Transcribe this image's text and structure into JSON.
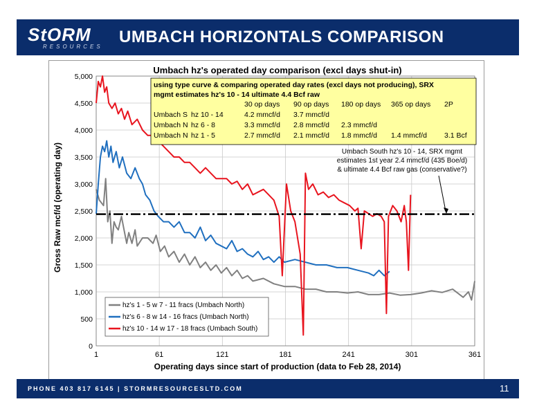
{
  "header": {
    "logo_main": "StORM",
    "logo_sub": "RESOURCES",
    "title": "UMBACH HORIZONTALS COMPARISON"
  },
  "footer": {
    "text": "PHONE 403 817 6145  |  STORMRESOURCESLTD.COM",
    "page_number": "11"
  },
  "colors": {
    "header_bg": "#0b2d6b",
    "north_1_5": "#808080",
    "north_6_8": "#1f6fbf",
    "south_10_14": "#e8141e",
    "box_fill": "#ffffa0"
  },
  "chart_data": {
    "type": "line",
    "title": "Umbach hz's operated  day comparison (excl days shut-in)",
    "xlabel": "Operating days since start of production (data to Feb 28, 2014)",
    "ylabel": "Gross Raw mcf/d (operating day)",
    "xlim": [
      1,
      361
    ],
    "ylim": [
      0,
      5000
    ],
    "x_ticks": [
      1,
      61,
      121,
      181,
      241,
      301,
      361
    ],
    "y_ticks": [
      0,
      500,
      1000,
      1500,
      2000,
      2500,
      3000,
      3500,
      4000,
      4500,
      5000
    ],
    "y_tick_labels": [
      "0",
      "500",
      "1,000",
      "1,500",
      "2,000",
      "2,500",
      "3,000",
      "3,500",
      "4,000",
      "4,500",
      "5,000"
    ],
    "grid": true,
    "legend_position": "bottom-left",
    "reference_line": {
      "y": 2440,
      "style": "dash-dot"
    },
    "series": [
      {
        "name": "hz's 1 - 5 w 7 - 11 fracs (Umbach North)",
        "color": "#808080",
        "points": [
          [
            1,
            2900
          ],
          [
            4,
            2700
          ],
          [
            8,
            2600
          ],
          [
            10,
            3100
          ],
          [
            12,
            2300
          ],
          [
            14,
            2500
          ],
          [
            16,
            1900
          ],
          [
            18,
            2300
          ],
          [
            20,
            2200
          ],
          [
            22,
            2150
          ],
          [
            25,
            2400
          ],
          [
            28,
            2100
          ],
          [
            30,
            1900
          ],
          [
            32,
            2100
          ],
          [
            35,
            1900
          ],
          [
            38,
            2150
          ],
          [
            40,
            1850
          ],
          [
            45,
            2000
          ],
          [
            50,
            2000
          ],
          [
            55,
            1900
          ],
          [
            58,
            2050
          ],
          [
            62,
            1750
          ],
          [
            66,
            1850
          ],
          [
            70,
            1650
          ],
          [
            75,
            1750
          ],
          [
            80,
            1550
          ],
          [
            85,
            1700
          ],
          [
            90,
            1500
          ],
          [
            95,
            1650
          ],
          [
            100,
            1450
          ],
          [
            105,
            1550
          ],
          [
            110,
            1400
          ],
          [
            115,
            1500
          ],
          [
            120,
            1350
          ],
          [
            125,
            1450
          ],
          [
            130,
            1300
          ],
          [
            135,
            1400
          ],
          [
            140,
            1250
          ],
          [
            145,
            1300
          ],
          [
            150,
            1200
          ],
          [
            160,
            1250
          ],
          [
            170,
            1150
          ],
          [
            180,
            1100
          ],
          [
            190,
            1100
          ],
          [
            200,
            1050
          ],
          [
            210,
            1050
          ],
          [
            220,
            1000
          ],
          [
            230,
            1000
          ],
          [
            240,
            980
          ],
          [
            250,
            1000
          ],
          [
            260,
            950
          ],
          [
            270,
            950
          ],
          [
            280,
            980
          ],
          [
            290,
            940
          ],
          [
            300,
            950
          ],
          [
            310,
            980
          ],
          [
            320,
            1020
          ],
          [
            330,
            990
          ],
          [
            340,
            1050
          ],
          [
            350,
            900
          ],
          [
            355,
            1000
          ],
          [
            358,
            850
          ],
          [
            361,
            1200
          ]
        ]
      },
      {
        "name": "hz's 6 - 8 w 14 - 16 fracs (Umbach North)",
        "color": "#1f6fbf",
        "points": [
          [
            1,
            2450
          ],
          [
            3,
            3000
          ],
          [
            5,
            3500
          ],
          [
            7,
            3700
          ],
          [
            9,
            3600
          ],
          [
            11,
            3800
          ],
          [
            13,
            3500
          ],
          [
            15,
            3700
          ],
          [
            17,
            3400
          ],
          [
            20,
            3600
          ],
          [
            23,
            3300
          ],
          [
            26,
            3500
          ],
          [
            30,
            3200
          ],
          [
            34,
            3100
          ],
          [
            38,
            3300
          ],
          [
            42,
            3100
          ],
          [
            45,
            3000
          ],
          [
            48,
            2800
          ],
          [
            52,
            2700
          ],
          [
            56,
            2500
          ],
          [
            60,
            2400
          ],
          [
            65,
            2300
          ],
          [
            70,
            2300
          ],
          [
            75,
            2200
          ],
          [
            80,
            2300
          ],
          [
            85,
            2100
          ],
          [
            90,
            2100
          ],
          [
            95,
            2000
          ],
          [
            100,
            2200
          ],
          [
            105,
            1950
          ],
          [
            110,
            2050
          ],
          [
            115,
            1900
          ],
          [
            120,
            1850
          ],
          [
            125,
            1800
          ],
          [
            130,
            1950
          ],
          [
            135,
            1750
          ],
          [
            140,
            1800
          ],
          [
            145,
            1700
          ],
          [
            150,
            1650
          ],
          [
            155,
            1750
          ],
          [
            160,
            1600
          ],
          [
            165,
            1650
          ],
          [
            170,
            1550
          ],
          [
            175,
            1650
          ],
          [
            180,
            1550
          ],
          [
            190,
            1600
          ],
          [
            200,
            1550
          ],
          [
            210,
            1500
          ],
          [
            220,
            1500
          ],
          [
            230,
            1450
          ],
          [
            240,
            1450
          ],
          [
            250,
            1400
          ],
          [
            260,
            1350
          ],
          [
            265,
            1300
          ],
          [
            270,
            1400
          ],
          [
            275,
            1300
          ],
          [
            280,
            1380
          ]
        ]
      },
      {
        "name": "hz's 10 - 14 w 17 - 18 fracs (Umbach South)",
        "color": "#e8141e",
        "points": [
          [
            1,
            4500
          ],
          [
            3,
            4900
          ],
          [
            5,
            4800
          ],
          [
            7,
            5000
          ],
          [
            9,
            4700
          ],
          [
            11,
            4800
          ],
          [
            13,
            4500
          ],
          [
            16,
            4400
          ],
          [
            19,
            4500
          ],
          [
            22,
            4300
          ],
          [
            25,
            4400
          ],
          [
            28,
            4200
          ],
          [
            31,
            4350
          ],
          [
            35,
            4100
          ],
          [
            40,
            4200
          ],
          [
            45,
            4000
          ],
          [
            50,
            3900
          ],
          [
            55,
            3900
          ],
          [
            60,
            3800
          ],
          [
            65,
            3700
          ],
          [
            70,
            3600
          ],
          [
            75,
            3500
          ],
          [
            80,
            3500
          ],
          [
            85,
            3400
          ],
          [
            90,
            3400
          ],
          [
            95,
            3300
          ],
          [
            100,
            3200
          ],
          [
            105,
            3300
          ],
          [
            110,
            3200
          ],
          [
            115,
            3100
          ],
          [
            120,
            3100
          ],
          [
            125,
            3100
          ],
          [
            130,
            3000
          ],
          [
            135,
            3050
          ],
          [
            140,
            2900
          ],
          [
            145,
            3000
          ],
          [
            150,
            2800
          ],
          [
            155,
            2850
          ],
          [
            160,
            2900
          ],
          [
            165,
            2800
          ],
          [
            170,
            2700
          ],
          [
            175,
            2400
          ],
          [
            178,
            1300
          ],
          [
            182,
            3000
          ],
          [
            186,
            2500
          ],
          [
            190,
            2300
          ],
          [
            195,
            1700
          ],
          [
            198,
            200
          ],
          [
            200,
            3200
          ],
          [
            203,
            2900
          ],
          [
            207,
            3000
          ],
          [
            212,
            2800
          ],
          [
            217,
            2850
          ],
          [
            222,
            2750
          ],
          [
            227,
            2800
          ],
          [
            232,
            2700
          ],
          [
            237,
            2650
          ],
          [
            242,
            2600
          ],
          [
            247,
            2500
          ],
          [
            250,
            2550
          ],
          [
            253,
            1800
          ],
          [
            256,
            2500
          ],
          [
            260,
            2450
          ],
          [
            264,
            2400
          ],
          [
            268,
            2450
          ],
          [
            272,
            2400
          ],
          [
            275,
            2300
          ],
          [
            277,
            600
          ],
          [
            279,
            2400
          ],
          [
            283,
            2600
          ],
          [
            287,
            2500
          ],
          [
            291,
            2300
          ],
          [
            294,
            2600
          ],
          [
            296,
            2300
          ],
          [
            298,
            1400
          ],
          [
            300,
            2800
          ]
        ]
      }
    ],
    "annotation": {
      "box_header": [
        "using type curve & comparing operated day rates (excl days not producing), SRX",
        "mgmt estimates hz's 10 - 14 ultimate 4.4 Bcf raw"
      ],
      "columns": [
        "",
        "",
        "30 op days",
        "90 op days",
        "180 op days",
        "365 op days",
        "2P"
      ],
      "rows": [
        [
          "Umbach S",
          "hz 10 - 14",
          "4.2 mmcf/d",
          "3.7 mmcf/d",
          "",
          "",
          ""
        ],
        [
          "Umbach N",
          "hz  6 - 8",
          "3.3 mmcf/d",
          "2.8 mmcf/d",
          "2.3 mmcf/d",
          "",
          ""
        ],
        [
          "Umbach N",
          "hz 1 - 5",
          "2.7 mmcf/d",
          "2.1 mmcf/d",
          "1.8 mmcf/d",
          "1.4 mmcf/d",
          "3.1 Bcf"
        ]
      ],
      "note_lines": [
        "Umbach South hz's 10 - 14, SRX mgmt",
        "estimates 1st year 2.4 mmcf/d (435 Boe/d)",
        "& ultimate 4.4 Bcf raw gas (conservative?)"
      ]
    }
  }
}
